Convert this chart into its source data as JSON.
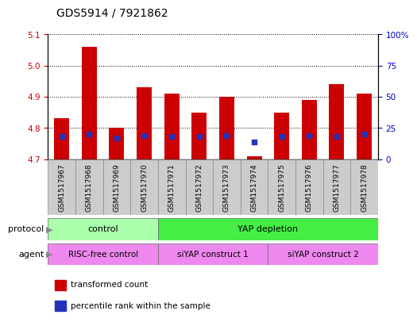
{
  "title": "GDS5914 / 7921862",
  "samples": [
    "GSM1517967",
    "GSM1517968",
    "GSM1517969",
    "GSM1517970",
    "GSM1517971",
    "GSM1517972",
    "GSM1517973",
    "GSM1517974",
    "GSM1517975",
    "GSM1517976",
    "GSM1517977",
    "GSM1517978"
  ],
  "transformed_count": [
    4.83,
    5.06,
    4.8,
    4.93,
    4.91,
    4.85,
    4.9,
    4.71,
    4.85,
    4.89,
    4.94,
    4.91
  ],
  "percentile_rank": [
    18,
    20,
    17,
    19,
    18,
    18,
    19,
    14,
    18,
    19,
    18,
    20
  ],
  "bar_bottom": 4.7,
  "ylim_left": [
    4.7,
    5.1
  ],
  "ylim_right": [
    0,
    100
  ],
  "yticks_left": [
    4.7,
    4.8,
    4.9,
    5.0,
    5.1
  ],
  "yticks_right": [
    0,
    25,
    50,
    75,
    100
  ],
  "ytick_labels_right": [
    "0",
    "25",
    "50",
    "75",
    "100%"
  ],
  "bar_color": "#cc0000",
  "dot_color": "#2233bb",
  "control_color": "#aaffaa",
  "yap_color": "#44ee44",
  "agent_color": "#ee88ee",
  "sample_bg_color": "#cccccc",
  "legend_red_label": "transformed count",
  "legend_blue_label": "percentile rank within the sample",
  "protocol_label": "protocol",
  "agent_label": "agent",
  "left_axis_color": "#cc0000",
  "right_axis_color": "#0000cc",
  "gridline_color": "#000000",
  "title_fontsize": 10,
  "label_fontsize": 8,
  "tick_fontsize": 7.5,
  "sample_fontsize": 6.5
}
